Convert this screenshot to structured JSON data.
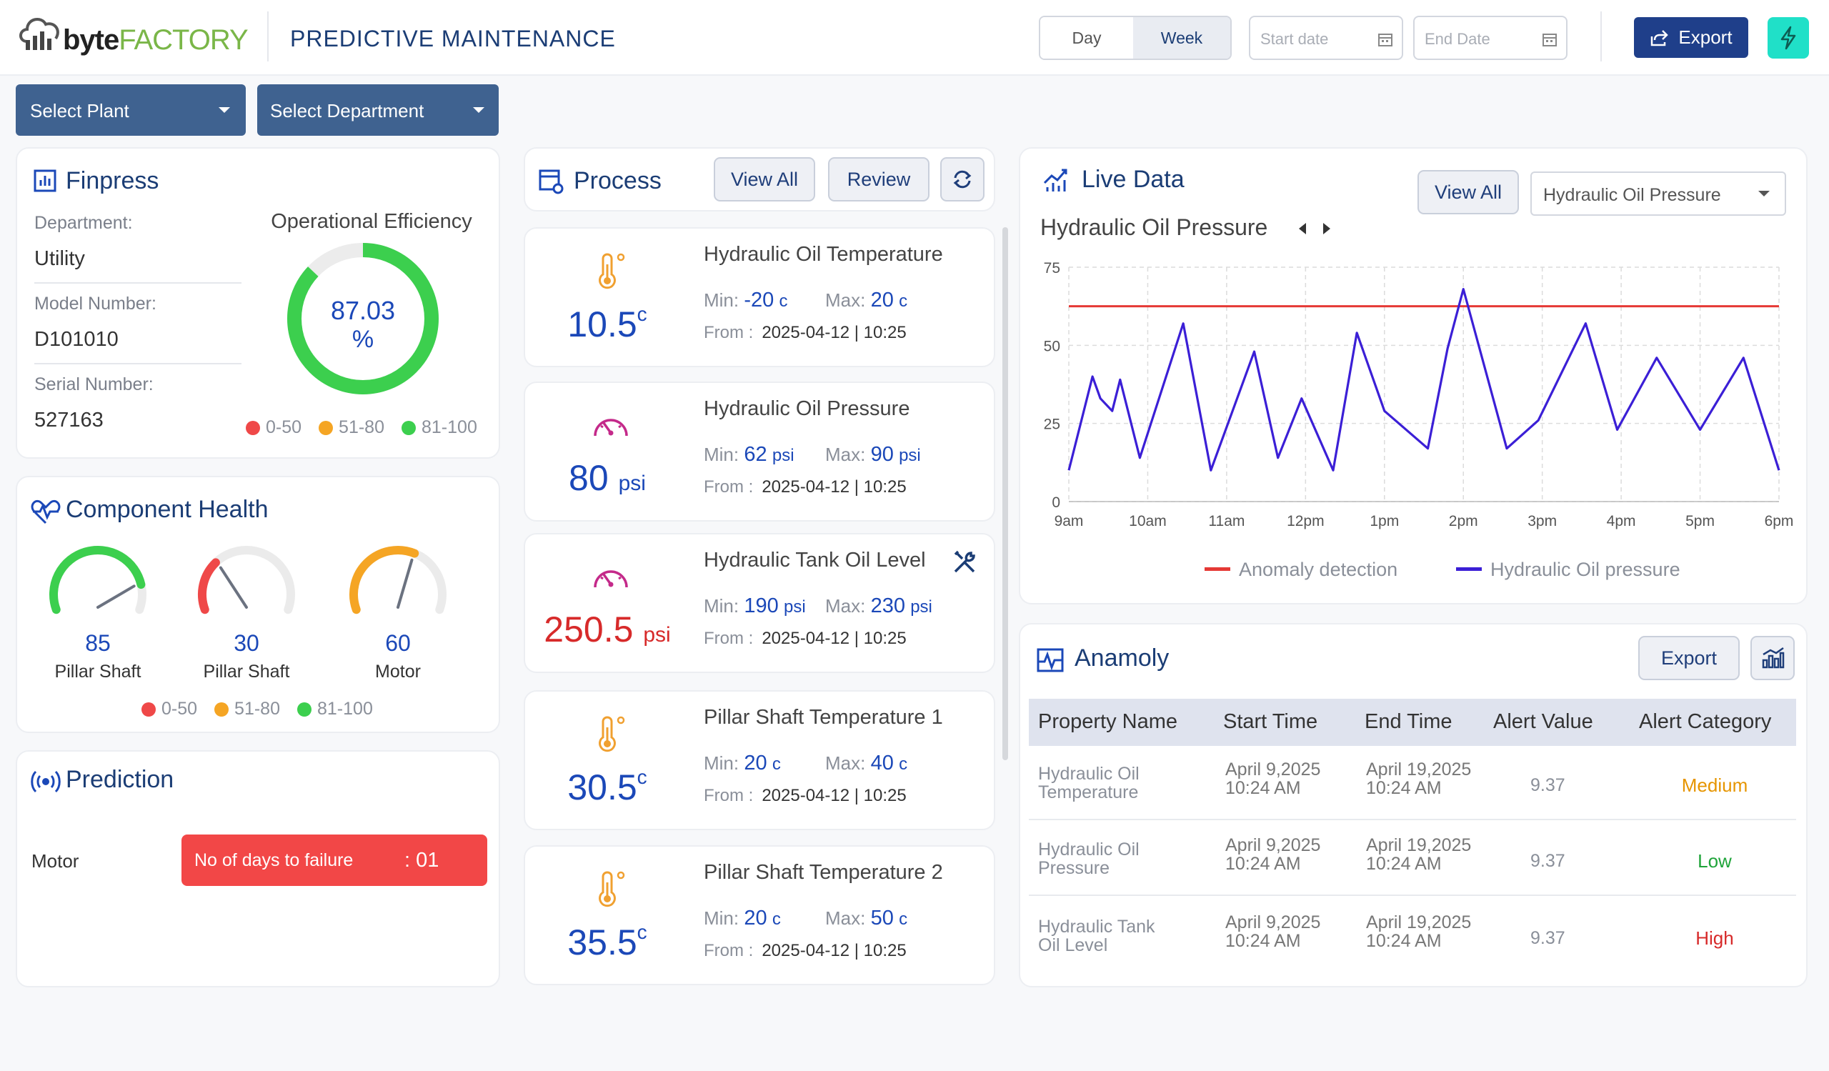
{
  "header": {
    "logo_text_bold": "byte",
    "logo_text_light": "FACTORY",
    "title": "PREDICTIVE MAINTENANCE",
    "day_label": "Day",
    "week_label": "Week",
    "start_placeholder": "Start date",
    "end_placeholder": "End Date",
    "export_label": "Export"
  },
  "filters": {
    "plant_label": "Select Plant",
    "department_label": "Select Department"
  },
  "finpress": {
    "title": "Finpress",
    "department_label": "Department:",
    "department_value": "Utility",
    "model_label": "Model Number:",
    "model_value": "D101010",
    "serial_label": "Serial Number:",
    "serial_value": "527163",
    "efficiency_title": "Operational Efficiency",
    "efficiency_value": "87.03",
    "efficiency_unit": "%",
    "efficiency_percent": 87.03,
    "legend": [
      "0-50",
      "51-80",
      "81-100"
    ]
  },
  "component_health": {
    "title": "Component Health",
    "gauges": [
      {
        "value": "85",
        "label": "Pillar Shaft",
        "color": "#3ccf4e"
      },
      {
        "value": "30",
        "label": "Pillar Shaft",
        "color": "#ef4848"
      },
      {
        "value": "60",
        "label": "Motor",
        "color": "#f5a524"
      }
    ],
    "legend": [
      "0-50",
      "51-80",
      "81-100"
    ]
  },
  "prediction": {
    "title": "Prediction",
    "row_label": "Motor",
    "failure_label": "No of days to failure",
    "failure_value": ": 01"
  },
  "process": {
    "title": "Process",
    "view_all": "View All",
    "review": "Review",
    "items": [
      {
        "name": "Hydraulic Oil Temperature",
        "min_label": "Min:",
        "min": "-20",
        "min_unit": "c",
        "max_label": "Max:",
        "max": "20",
        "max_unit": "c",
        "from_label": "From :",
        "from": "2025-04-12 | 10:25",
        "value": "10.5",
        "unit": "c",
        "icon": "thermometer-icon"
      },
      {
        "name": "Hydraulic Oil Pressure",
        "min_label": "Min:",
        "min": "62",
        "min_unit": "psi",
        "max_label": "Max:",
        "max": "90",
        "max_unit": "psi",
        "from_label": "From :",
        "from": "2025-04-12 | 10:25",
        "value": "80",
        "unit": "psi",
        "icon": "gauge-icon"
      },
      {
        "name": "Hydraulic Tank Oil Level",
        "min_label": "Min:",
        "min": "190",
        "min_unit": "psi",
        "max_label": "Max:",
        "max": "230",
        "max_unit": "psi",
        "from_label": "From :",
        "from": "2025-04-12 | 10:25",
        "value": "250.5",
        "unit": "psi",
        "icon": "gauge-icon"
      },
      {
        "name": "Pillar Shaft Temperature 1",
        "min_label": "Min:",
        "min": "20",
        "min_unit": "c",
        "max_label": "Max:",
        "max": "40",
        "max_unit": "c",
        "from_label": "From :",
        "from": "2025-04-12 | 10:25",
        "value": "30.5",
        "unit": "c",
        "icon": "thermometer-icon"
      },
      {
        "name": "Pillar Shaft Temperature 2",
        "min_label": "Min:",
        "min": "20",
        "min_unit": "c",
        "max_label": "Max:",
        "max": "50",
        "max_unit": "c",
        "from_label": "From :",
        "from": "2025-04-12 | 10:25",
        "value": "35.5",
        "unit": "c",
        "icon": "thermometer-icon"
      }
    ]
  },
  "live_data": {
    "title": "Live Data",
    "view_all": "View All",
    "select_value": "Hydraulic Oil Pressure",
    "chart_title": "Hydraulic Oil Pressure"
  },
  "chart_data": {
    "type": "line",
    "title": "Hydraulic Oil Pressure",
    "x_ticks": [
      "9am",
      "10am",
      "11am",
      "12pm",
      "1pm",
      "2pm",
      "3pm",
      "4pm",
      "5pm",
      "6pm"
    ],
    "ylim": [
      0,
      75
    ],
    "y_ticks": [
      0,
      25,
      50,
      75
    ],
    "grid": true,
    "legend_position": "bottom",
    "series": [
      {
        "name": "Anomaly detection",
        "color": "#e53935",
        "x": [
          0,
          9
        ],
        "values": [
          62.5,
          62.5
        ]
      },
      {
        "name": "Hydraulic Oil pressure",
        "color": "#3b1fd6",
        "x": [
          0,
          0.3,
          0.4,
          0.55,
          0.65,
          0.9,
          1.45,
          1.8,
          2.35,
          2.65,
          2.95,
          3.35,
          3.65,
          4.0,
          4.55,
          4.8,
          5.0,
          5.55,
          5.95,
          6.55,
          6.95,
          7.45,
          8.0,
          8.55,
          9.0
        ],
        "values": [
          10,
          40,
          33,
          29,
          39,
          14,
          57,
          10,
          48,
          14,
          33,
          10,
          54,
          29,
          17,
          49,
          68,
          17,
          26,
          57,
          23,
          46,
          23,
          46,
          10
        ]
      }
    ]
  },
  "anomaly": {
    "title": "Anamoly",
    "export_label": "Export",
    "columns": [
      "Property Name",
      "Start Time",
      "End Time",
      "Alert Value",
      "Alert Category"
    ],
    "rows": [
      {
        "name1": "Hydraulic Oil",
        "name2": "Temperature",
        "start1": "April 9,2025",
        "start2": "10:24 AM",
        "end1": "April 19,2025",
        "end2": "10:24 AM",
        "value": "9.37",
        "category": "Medium",
        "color": "#e69500"
      },
      {
        "name1": "Hydraulic Oil",
        "name2": "Pressure",
        "start1": "April 9,2025",
        "start2": "10:24 AM",
        "end1": "April 19,2025",
        "end2": "10:24 AM",
        "value": "9.37",
        "category": "Low",
        "color": "#1fa43a"
      },
      {
        "name1": "Hydraulic Tank",
        "name2": "Oil Level",
        "start1": "April 9,2025",
        "start2": "10:24 AM",
        "end1": "April 19,2025",
        "end2": "10:24 AM",
        "value": "9.37",
        "category": "High",
        "color": "#d72a2a"
      }
    ]
  },
  "colors": {
    "legend_red": "#ef4848",
    "legend_orange": "#f5a524",
    "legend_green": "#3ccf4e",
    "navy": "#1f3f8a",
    "export_bg": "#1f3f8a",
    "bolt_bg": "#20e0c8",
    "value_red": "#d72a2a"
  }
}
